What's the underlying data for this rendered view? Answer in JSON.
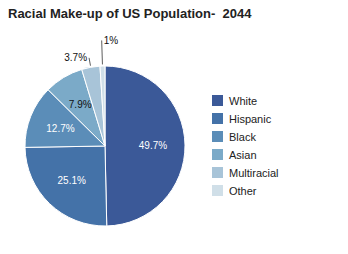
{
  "chart_data": {
    "type": "pie",
    "title": "Racial Make-up of US Population-  2044",
    "categories": [
      "White",
      "Hispanic",
      "Black",
      "Asian",
      "Multiracial",
      "Other"
    ],
    "values": [
      49.7,
      25.1,
      12.7,
      7.9,
      3.7,
      1.0
    ],
    "value_labels": [
      "49.7%",
      "25.1%",
      "12.7%",
      "7.9%",
      "3.7%",
      "1%"
    ],
    "colors": [
      "#3B5998",
      "#4472A8",
      "#5B8DB8",
      "#7BAAC8",
      "#A8C4D8",
      "#D0DFE8"
    ],
    "data_labels": true,
    "legend": "right"
  }
}
